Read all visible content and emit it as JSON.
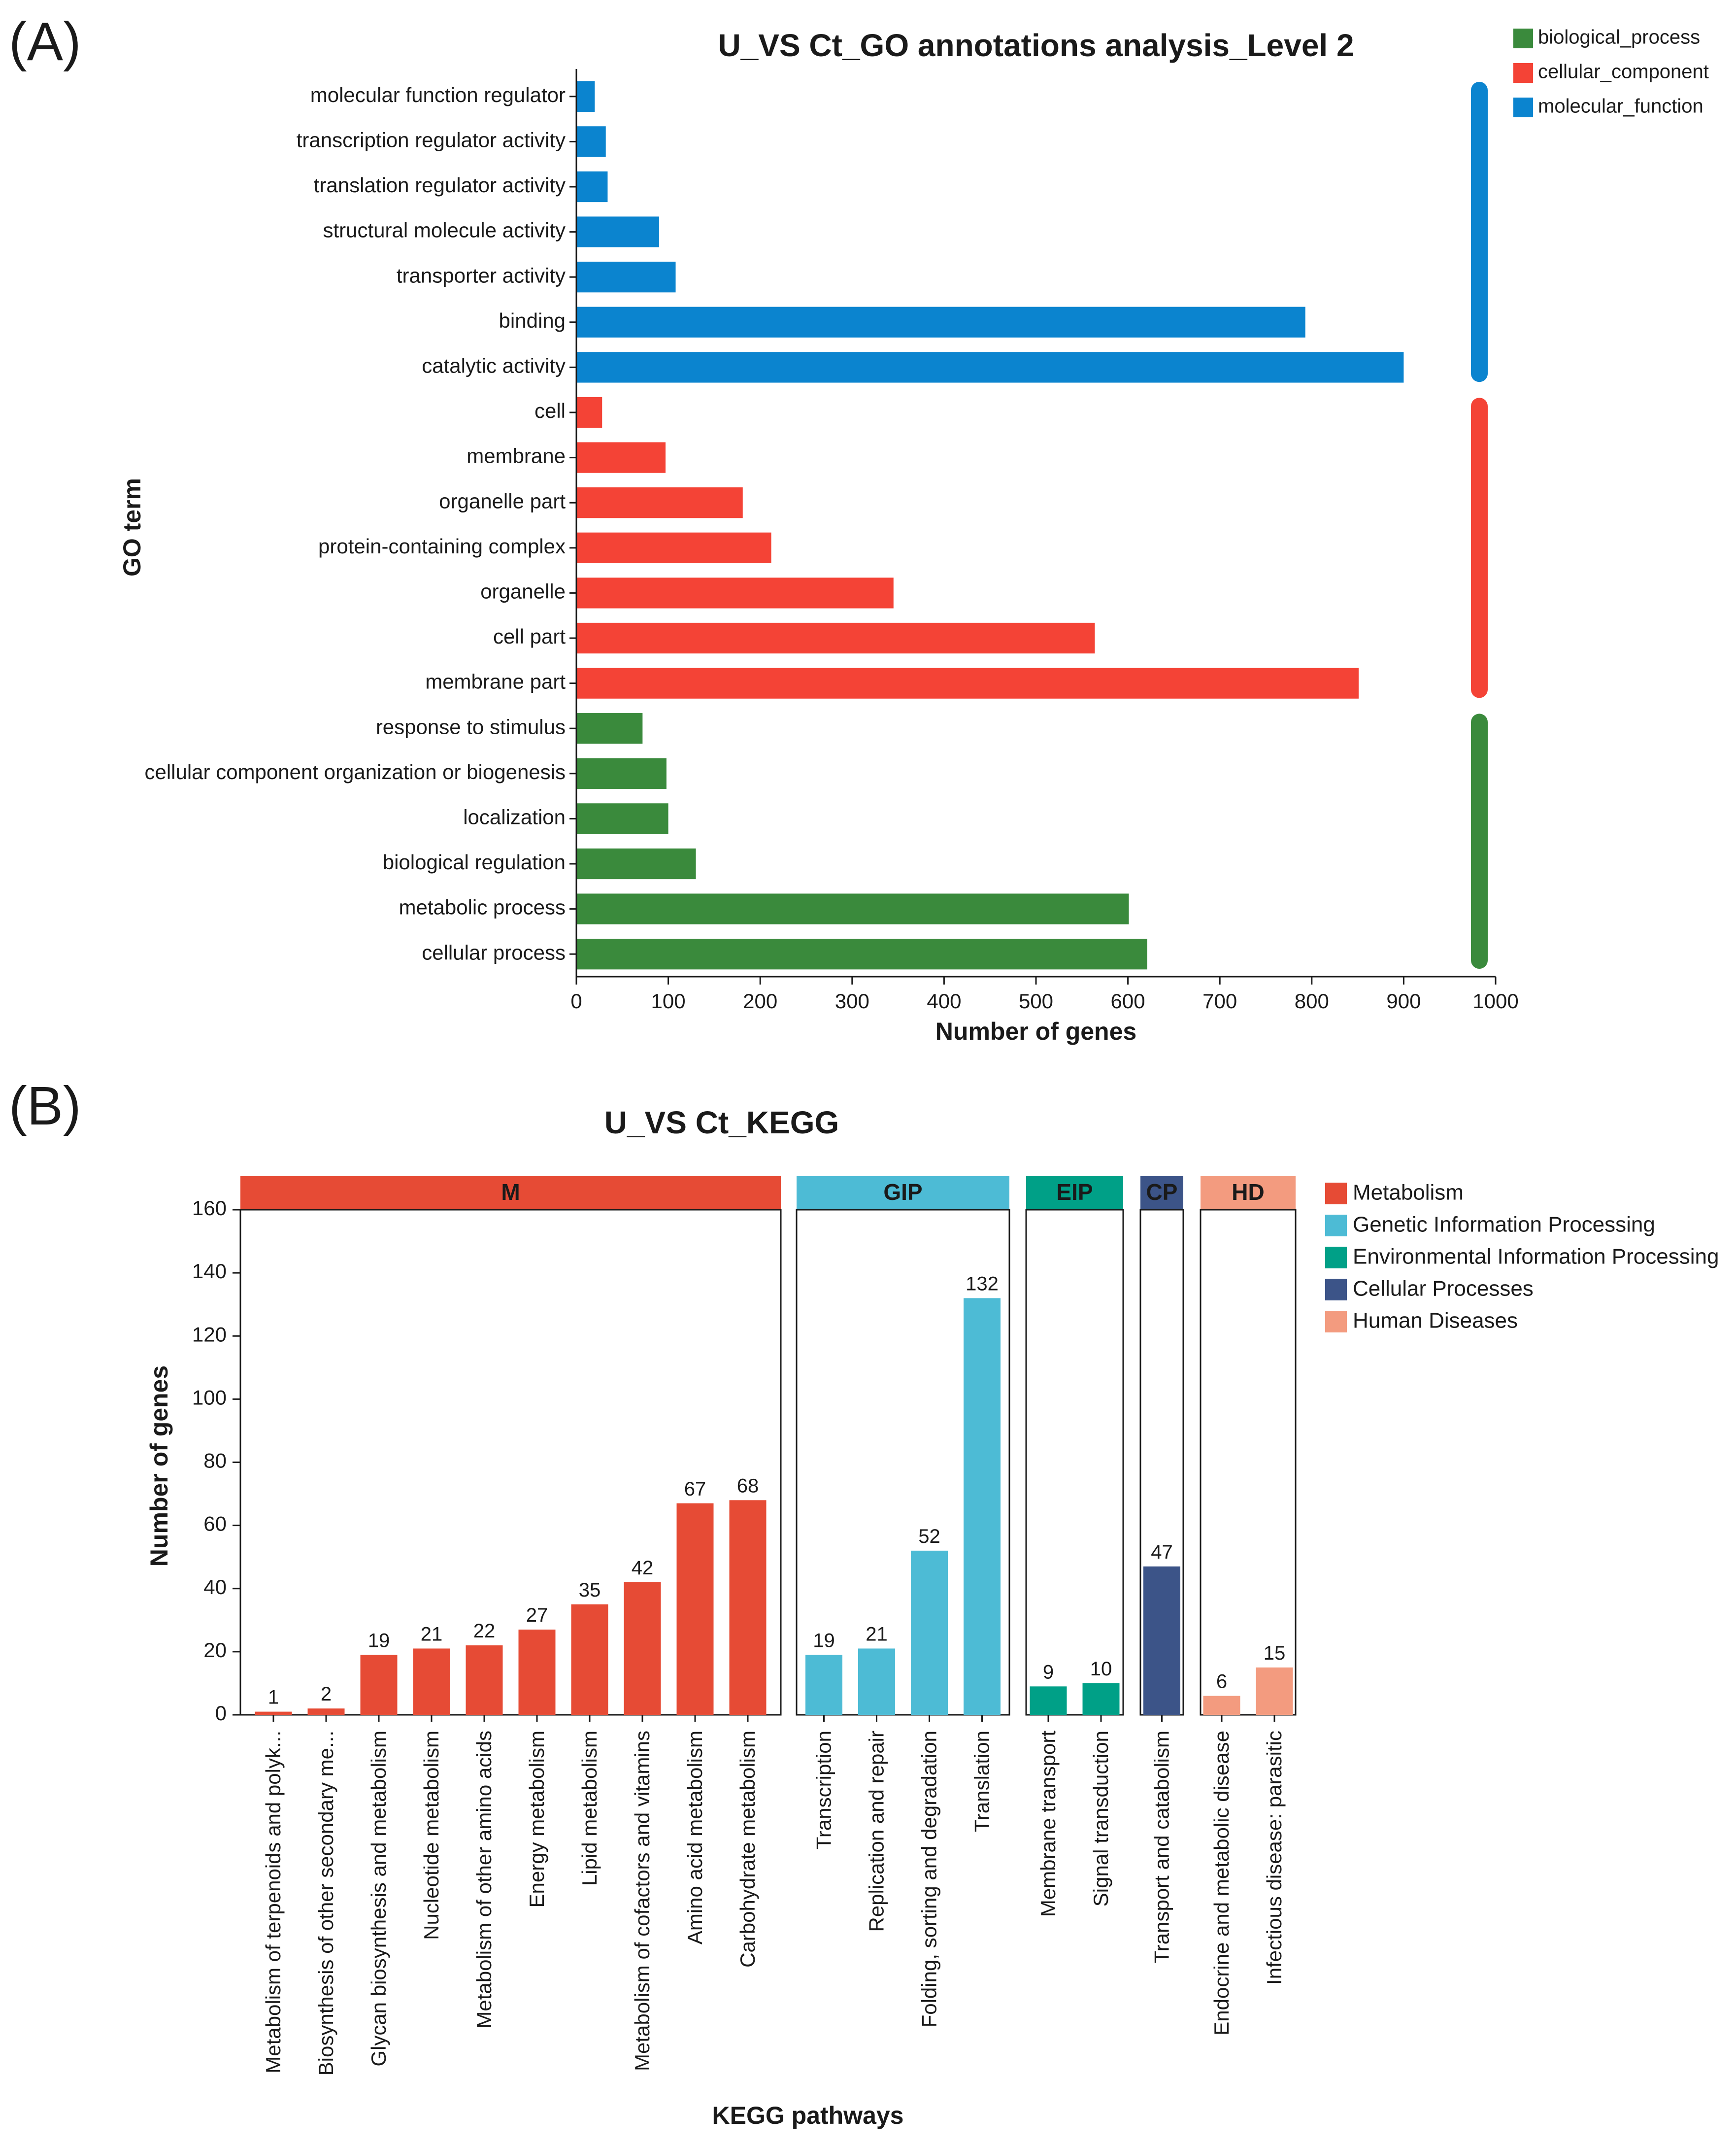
{
  "panels": {
    "a_label": "(A)",
    "b_label": "(B)"
  },
  "colors": {
    "biological_process": "#3a8a3c",
    "cellular_component": "#f44336",
    "molecular_function": "#0b84cf",
    "Metabolism": "#e64b35",
    "Genetic Information Processing": "#4dbbd5",
    "Environmental Information Processing": "#00a087",
    "Cellular Processes": "#3c5488",
    "Human Diseases": "#f39b7f"
  },
  "chart_data": [
    {
      "type": "bar",
      "orientation": "horizontal",
      "title": "U_VS  Ct_GO annotations analysis_Level 2",
      "xlabel": "Number of genes",
      "ylabel": "GO term",
      "xlim": [
        0,
        1000
      ],
      "xticks": [
        0,
        100,
        200,
        300,
        400,
        500,
        600,
        700,
        800,
        900,
        1000
      ],
      "legend": [
        "biological_process",
        "cellular_component",
        "molecular_function"
      ],
      "categories": [
        {
          "name": "molecular function regulator",
          "value": 20,
          "group": "molecular_function"
        },
        {
          "name": "transcription regulator activity",
          "value": 32,
          "group": "molecular_function"
        },
        {
          "name": "translation regulator activity",
          "value": 34,
          "group": "molecular_function"
        },
        {
          "name": "structural molecule activity",
          "value": 90,
          "group": "molecular_function"
        },
        {
          "name": "transporter activity",
          "value": 108,
          "group": "molecular_function"
        },
        {
          "name": "binding",
          "value": 793,
          "group": "molecular_function"
        },
        {
          "name": "catalytic activity",
          "value": 900,
          "group": "molecular_function"
        },
        {
          "name": "cell",
          "value": 28,
          "group": "cellular_component"
        },
        {
          "name": "membrane",
          "value": 97,
          "group": "cellular_component"
        },
        {
          "name": "organelle part",
          "value": 181,
          "group": "cellular_component"
        },
        {
          "name": "protein-containing complex",
          "value": 212,
          "group": "cellular_component"
        },
        {
          "name": "organelle",
          "value": 345,
          "group": "cellular_component"
        },
        {
          "name": "cell part",
          "value": 564,
          "group": "cellular_component"
        },
        {
          "name": "membrane part",
          "value": 851,
          "group": "cellular_component"
        },
        {
          "name": "response to stimulus",
          "value": 72,
          "group": "biological_process"
        },
        {
          "name": "cellular component organization or biogenesis",
          "value": 98,
          "group": "biological_process"
        },
        {
          "name": "localization",
          "value": 100,
          "group": "biological_process"
        },
        {
          "name": "biological regulation",
          "value": 130,
          "group": "biological_process"
        },
        {
          "name": "metabolic process",
          "value": 601,
          "group": "biological_process"
        },
        {
          "name": "cellular process",
          "value": 621,
          "group": "biological_process"
        }
      ]
    },
    {
      "type": "bar",
      "orientation": "vertical",
      "title": "U_VS Ct_KEGG",
      "xlabel": "KEGG pathways",
      "ylabel": "Number of genes",
      "ylim": [
        0,
        160
      ],
      "yticks": [
        0,
        20,
        40,
        60,
        80,
        100,
        120,
        140,
        160
      ],
      "legend": [
        "Metabolism",
        "Genetic Information Processing",
        "Environmental Information Processing",
        "Cellular Processes",
        "Human Diseases"
      ],
      "groups": [
        {
          "abbr": "M",
          "name": "Metabolism",
          "bars": [
            {
              "label": "Metabolism of terpenoids and polyk...",
              "value": 1
            },
            {
              "label": "Biosynthesis of other secondary me...",
              "value": 2
            },
            {
              "label": "Glycan biosynthesis and metabolism",
              "value": 19
            },
            {
              "label": "Nucleotide metabolism",
              "value": 21
            },
            {
              "label": "Metabolism of other amino acids",
              "value": 22
            },
            {
              "label": "Energy metabolism",
              "value": 27
            },
            {
              "label": "Lipid metabolism",
              "value": 35
            },
            {
              "label": "Metabolism of cofactors and vitamins",
              "value": 42
            },
            {
              "label": "Amino acid metabolism",
              "value": 67
            },
            {
              "label": "Carbohydrate metabolism",
              "value": 68
            }
          ]
        },
        {
          "abbr": "GIP",
          "name": "Genetic Information Processing",
          "bars": [
            {
              "label": "Transcription",
              "value": 19
            },
            {
              "label": "Replication and repair",
              "value": 21
            },
            {
              "label": "Folding, sorting and degradation",
              "value": 52
            },
            {
              "label": "Translation",
              "value": 132
            }
          ]
        },
        {
          "abbr": "EIP",
          "name": "Environmental Information Processing",
          "bars": [
            {
              "label": "Membrane transport",
              "value": 9
            },
            {
              "label": "Signal transduction",
              "value": 10
            }
          ]
        },
        {
          "abbr": "CP",
          "name": "Cellular Processes",
          "bars": [
            {
              "label": "Transport and catabolism",
              "value": 47
            }
          ]
        },
        {
          "abbr": "HD",
          "name": "Human Diseases",
          "bars": [
            {
              "label": "Endocrine and metabolic disease",
              "value": 6
            },
            {
              "label": "Infectious disease: parasitic",
              "value": 15
            }
          ]
        }
      ]
    }
  ]
}
